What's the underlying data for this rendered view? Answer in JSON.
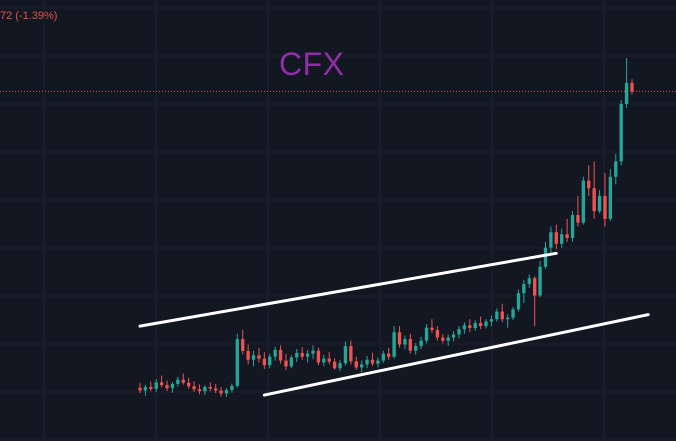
{
  "header": {
    "change_readout": "72 (-1.39%)"
  },
  "chart_data": {
    "type": "candlestick",
    "title": "CFX",
    "xlabel": "",
    "ylabel": "",
    "grid": true,
    "colors": {
      "background": "#131722",
      "grid": "#1e222d",
      "up": "#26a69a",
      "down": "#ef5350",
      "title": "#8e2fa6",
      "price_line": "#e2524d",
      "trendline": "#ffffff",
      "change_text": "#e2524d"
    },
    "price_line_value": 0.913,
    "trendlines": [
      {
        "name": "upper-channel-line",
        "points": [
          [
            0,
            0.3
          ],
          [
            77,
            0.49
          ]
        ]
      },
      {
        "name": "lower-channel-line",
        "points": [
          [
            23,
            0.12
          ],
          [
            94,
            0.33
          ]
        ]
      }
    ],
    "candles": [
      [
        0.139,
        0.151,
        0.125,
        0.132
      ],
      [
        0.132,
        0.147,
        0.118,
        0.141
      ],
      [
        0.141,
        0.155,
        0.13,
        0.136
      ],
      [
        0.136,
        0.162,
        0.128,
        0.153
      ],
      [
        0.153,
        0.171,
        0.14,
        0.146
      ],
      [
        0.146,
        0.158,
        0.131,
        0.138
      ],
      [
        0.138,
        0.154,
        0.126,
        0.149
      ],
      [
        0.149,
        0.168,
        0.142,
        0.16
      ],
      [
        0.16,
        0.176,
        0.147,
        0.152
      ],
      [
        0.152,
        0.165,
        0.136,
        0.143
      ],
      [
        0.143,
        0.156,
        0.128,
        0.135
      ],
      [
        0.135,
        0.148,
        0.122,
        0.13
      ],
      [
        0.13,
        0.146,
        0.12,
        0.141
      ],
      [
        0.141,
        0.153,
        0.13,
        0.137
      ],
      [
        0.137,
        0.149,
        0.125,
        0.132
      ],
      [
        0.132,
        0.141,
        0.116,
        0.124
      ],
      [
        0.124,
        0.138,
        0.115,
        0.133
      ],
      [
        0.133,
        0.15,
        0.126,
        0.144
      ],
      [
        0.144,
        0.28,
        0.14,
        0.266
      ],
      [
        0.266,
        0.29,
        0.226,
        0.235
      ],
      [
        0.235,
        0.252,
        0.2,
        0.212
      ],
      [
        0.212,
        0.236,
        0.195,
        0.224
      ],
      [
        0.224,
        0.243,
        0.205,
        0.215
      ],
      [
        0.215,
        0.232,
        0.188,
        0.198
      ],
      [
        0.198,
        0.228,
        0.19,
        0.22
      ],
      [
        0.22,
        0.246,
        0.21,
        0.238
      ],
      [
        0.238,
        0.25,
        0.202,
        0.21
      ],
      [
        0.21,
        0.227,
        0.185,
        0.195
      ],
      [
        0.195,
        0.224,
        0.19,
        0.218
      ],
      [
        0.218,
        0.24,
        0.206,
        0.23
      ],
      [
        0.23,
        0.245,
        0.212,
        0.22
      ],
      [
        0.22,
        0.238,
        0.205,
        0.228
      ],
      [
        0.228,
        0.25,
        0.214,
        0.236
      ],
      [
        0.236,
        0.244,
        0.198,
        0.205
      ],
      [
        0.205,
        0.225,
        0.195,
        0.215
      ],
      [
        0.215,
        0.232,
        0.2,
        0.207
      ],
      [
        0.207,
        0.216,
        0.186,
        0.19
      ],
      [
        0.19,
        0.212,
        0.182,
        0.203
      ],
      [
        0.203,
        0.26,
        0.197,
        0.248
      ],
      [
        0.248,
        0.262,
        0.2,
        0.208
      ],
      [
        0.208,
        0.22,
        0.186,
        0.192
      ],
      [
        0.192,
        0.21,
        0.18,
        0.2
      ],
      [
        0.2,
        0.222,
        0.19,
        0.212
      ],
      [
        0.212,
        0.23,
        0.196,
        0.202
      ],
      [
        0.202,
        0.218,
        0.192,
        0.21
      ],
      [
        0.21,
        0.236,
        0.204,
        0.228
      ],
      [
        0.228,
        0.243,
        0.212,
        0.22
      ],
      [
        0.22,
        0.3,
        0.215,
        0.284
      ],
      [
        0.284,
        0.3,
        0.244,
        0.252
      ],
      [
        0.252,
        0.275,
        0.24,
        0.266
      ],
      [
        0.266,
        0.28,
        0.228,
        0.236
      ],
      [
        0.236,
        0.256,
        0.225,
        0.248
      ],
      [
        0.248,
        0.272,
        0.24,
        0.262
      ],
      [
        0.262,
        0.305,
        0.255,
        0.296
      ],
      [
        0.296,
        0.318,
        0.282,
        0.29
      ],
      [
        0.29,
        0.3,
        0.262,
        0.27
      ],
      [
        0.27,
        0.28,
        0.255,
        0.262
      ],
      [
        0.262,
        0.278,
        0.248,
        0.27
      ],
      [
        0.27,
        0.287,
        0.26,
        0.278
      ],
      [
        0.278,
        0.3,
        0.268,
        0.292
      ],
      [
        0.292,
        0.31,
        0.28,
        0.302
      ],
      [
        0.302,
        0.318,
        0.285,
        0.295
      ],
      [
        0.295,
        0.315,
        0.288,
        0.308
      ],
      [
        0.308,
        0.325,
        0.292,
        0.3
      ],
      [
        0.3,
        0.318,
        0.294,
        0.312
      ],
      [
        0.312,
        0.328,
        0.3,
        0.318
      ],
      [
        0.318,
        0.346,
        0.312,
        0.338
      ],
      [
        0.338,
        0.358,
        0.31,
        0.318
      ],
      [
        0.318,
        0.33,
        0.296,
        0.322
      ],
      [
        0.322,
        0.35,
        0.316,
        0.344
      ],
      [
        0.344,
        0.395,
        0.338,
        0.386
      ],
      [
        0.386,
        0.42,
        0.36,
        0.41
      ],
      [
        0.41,
        0.435,
        0.4,
        0.425
      ],
      [
        0.425,
        0.43,
        0.3,
        0.38
      ],
      [
        0.38,
        0.47,
        0.375,
        0.455
      ],
      [
        0.455,
        0.52,
        0.45,
        0.505
      ],
      [
        0.505,
        0.56,
        0.49,
        0.545
      ],
      [
        0.545,
        0.565,
        0.5,
        0.515
      ],
      [
        0.515,
        0.555,
        0.505,
        0.54
      ],
      [
        0.54,
        0.58,
        0.52,
        0.53
      ],
      [
        0.53,
        0.6,
        0.52,
        0.59
      ],
      [
        0.59,
        0.64,
        0.56,
        0.57
      ],
      [
        0.57,
        0.69,
        0.565,
        0.68
      ],
      [
        0.68,
        0.72,
        0.64,
        0.66
      ],
      [
        0.66,
        0.73,
        0.58,
        0.6
      ],
      [
        0.6,
        0.655,
        0.595,
        0.64
      ],
      [
        0.64,
        0.7,
        0.56,
        0.58
      ],
      [
        0.58,
        0.71,
        0.575,
        0.69
      ],
      [
        0.69,
        0.75,
        0.67,
        0.73
      ],
      [
        0.73,
        0.89,
        0.72,
        0.88
      ],
      [
        0.88,
        1.0,
        0.87,
        0.935
      ],
      [
        0.935,
        0.945,
        0.905,
        0.913
      ]
    ]
  }
}
